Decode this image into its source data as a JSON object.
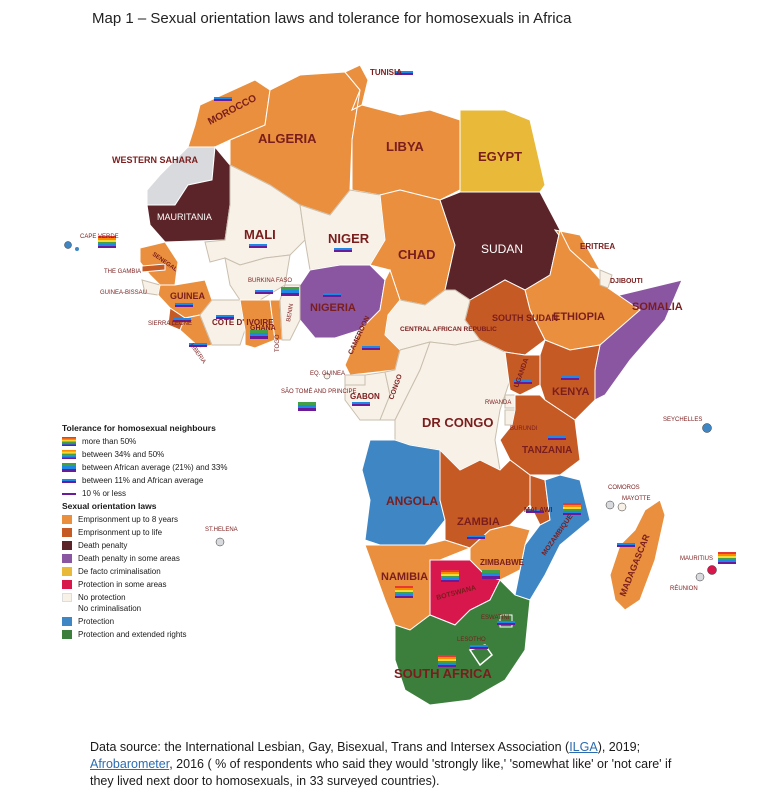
{
  "title": "Map 1 – Sexual orientation laws and tolerance for homosexuals in Africa",
  "colors": {
    "prison_8": "#e98f3d",
    "prison_life": "#c65a24",
    "death": "#5b2428",
    "death_some": "#8a56a2",
    "defacto": "#e9b93a",
    "protection_some": "#d8174d",
    "no_protection": "#f8f1e7",
    "protection": "#3f86c4",
    "protection_ext": "#3c7f3c",
    "no_data": "#d8dadd",
    "ocean": "#ffffff"
  },
  "legend": {
    "tolerance_title": "Tolerance for homosexual neighbours",
    "tolerance_items": [
      {
        "label": "more than 50%",
        "flag": "rainbow6"
      },
      {
        "label": "between 34% and 50%",
        "flag": "rainbow5"
      },
      {
        "label": "between African average (21%) and 33%",
        "flag": "rainbow3"
      },
      {
        "label": "between 11% and African average",
        "flag": "rainbow2"
      },
      {
        "label": "10 % or less",
        "flag": "rainbow1"
      }
    ],
    "laws_title": "Sexual orientation laws",
    "laws_items": [
      {
        "label": "Emprisonment up to 8 years",
        "color": "#e98f3d"
      },
      {
        "label": "Emprisonment up to life",
        "color": "#c65a24"
      },
      {
        "label": "Death penalty",
        "color": "#5b2428"
      },
      {
        "label": "Death penalty in some areas",
        "color": "#8a56a2"
      },
      {
        "label": "De facto criminalisation",
        "color": "#e9b93a",
        "italic_prefix": "De facto"
      },
      {
        "label": "Protection in some areas",
        "color": "#d8174d"
      },
      {
        "label": "No protection",
        "color": "#f8f1e7",
        "sub": "No criminalisation"
      },
      {
        "label": "Protection",
        "color": "#3f86c4"
      },
      {
        "label": "Protection and extended rights",
        "color": "#3c7f3c"
      }
    ]
  },
  "countries": {
    "tunisia": "TUNISIA",
    "morocco": "MOROCCO",
    "algeria": "ALGERIA",
    "libya": "LIBYA",
    "egypt": "EGYPT",
    "western_sahara": "WESTERN SAHARA",
    "mauritania": "MAURITANIA",
    "mali": "MALI",
    "niger": "NIGER",
    "chad": "CHAD",
    "sudan": "SUDAN",
    "eritrea": "ERITREA",
    "djibouti": "DJIBOUTI",
    "somalia": "SOMALIA",
    "ethiopia": "ETHIOPIA",
    "south_sudan": "SOUTH SUDAN",
    "car": "CENTRAL AFRICAN REPUBLIC",
    "nigeria": "NIGERIA",
    "cameroon": "CAMEROON",
    "senegal": "SENEGAL",
    "the_gambia": "THE GAMBIA",
    "guinea_bissau": "GUINEA-BISSAU",
    "guinea": "GUINEA",
    "sierra_leone": "SIERRA LEONE",
    "liberia": "LIBERIA",
    "cote_divoire": "CÔTE D' IVOIRE",
    "burkina_faso": "BURKINA FASO",
    "ghana": "GHANA",
    "togo": "TOGO",
    "benin": "BENIN",
    "cape_verde": "CAPE VERDE",
    "eq_guinea": "EQ. GUINEA",
    "sao_tome": "SÃO TOMÉ AND PRINCIPE",
    "gabon": "GABON",
    "congo": "CONGO",
    "dr_congo": "DR CONGO",
    "uganda": "UGANDA",
    "kenya": "KENYA",
    "rwanda": "RWANDA",
    "burundi": "BURUNDI",
    "tanzania": "TANZANIA",
    "seychelles": "SEYCHELLES",
    "angola": "ANGOLA",
    "zambia": "ZAMBIA",
    "malawi": "MALAWI",
    "mozambique": "MOZAMBIQUE",
    "comoros": "COMOROS",
    "mayotte": "MAYOTTE",
    "madagascar": "MADAGASCAR",
    "mauritius": "MAURITIUS",
    "reunion": "RÉUNION",
    "st_helena": "ST.HELENA",
    "namibia": "NAMIBIA",
    "botswana": "BOTSWANA",
    "zimbabwe": "ZIMBABWE",
    "eswatini": "ESWATINI",
    "lesotho": "LESOTHO",
    "south_africa": "SOUTH AFRICA"
  },
  "source": {
    "prefix": "Data source: the International Lesbian, Gay, Bisexual, Trans and Intersex Association (",
    "ilga": "ILGA",
    "mid": "), 2019;",
    "afro": "Afrobarometer",
    "suffix": ", 2016 ( % of respondents who said they would 'strongly like,' 'somewhat like' or 'not care' if they lived next door to homosexuals, in 33 surveyed countries)."
  }
}
